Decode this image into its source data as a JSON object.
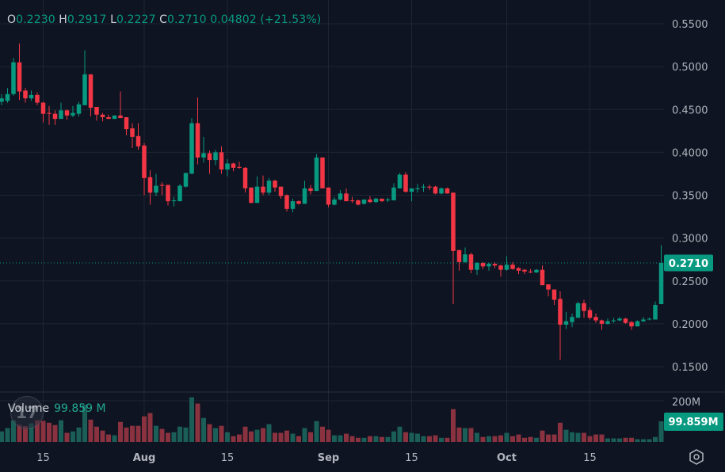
{
  "legend": {
    "open_label": "O",
    "open": "0.2230",
    "high_label": "H",
    "high": "0.2917",
    "low_label": "L",
    "low": "0.2227",
    "close_label": "C",
    "close": "0.2710",
    "change": "0.04802",
    "change_pct": "(+21.53%)"
  },
  "volume_legend": {
    "label": "Volume",
    "value": "99.859 M"
  },
  "last_price_label": "0.2710",
  "last_volume_label": "99.859M",
  "icons": {
    "settings": "settings-hexagon-icon",
    "logo": "tradingview-logo-icon"
  },
  "colors": {
    "background": "#0e1421",
    "up": "#089981",
    "down": "#f23645",
    "volume_up": "#1a5e57",
    "volume_down": "#8a323f",
    "grid": "#1e2533",
    "text": "#b2b5be"
  },
  "chart_data": {
    "type": "candlestick",
    "price_axis": {
      "ticks": [
        "0.5500",
        "0.5000",
        "0.4500",
        "0.4000",
        "0.3500",
        "0.3000",
        "0.2500",
        "0.2000",
        "0.1500"
      ],
      "tick_values": [
        0.55,
        0.5,
        0.45,
        0.4,
        0.35,
        0.3,
        0.25,
        0.2,
        0.15
      ],
      "range": [
        0.138,
        0.55
      ]
    },
    "volume_axis": {
      "ticks": [
        "200M"
      ],
      "tick_values": [
        200
      ],
      "unit": "M"
    },
    "time_axis": {
      "ticks": [
        {
          "label": "15",
          "date": "Jul 15"
        },
        {
          "label": "Aug",
          "date": "Aug 1"
        },
        {
          "label": "15",
          "date": "Aug 15"
        },
        {
          "label": "Sep",
          "date": "Sep 1"
        },
        {
          "label": "15",
          "date": "Sep 15"
        },
        {
          "label": "Oct",
          "date": "Oct 1"
        },
        {
          "label": "15",
          "date": "Oct 15"
        }
      ]
    },
    "last_price": 0.271,
    "last_volume_m": 99.859,
    "grid": true,
    "columns": [
      "date",
      "open",
      "high",
      "low",
      "close",
      "volume_m"
    ],
    "candles": [
      [
        "Jul 8",
        0.459,
        0.468,
        0.455,
        0.463,
        51
      ],
      [
        "Jul 9",
        0.46,
        0.475,
        0.458,
        0.468,
        67
      ],
      [
        "Jul 10",
        0.468,
        0.51,
        0.466,
        0.505,
        105
      ],
      [
        "Jul 11",
        0.505,
        0.527,
        0.461,
        0.471,
        83
      ],
      [
        "Jul 12",
        0.472,
        0.475,
        0.458,
        0.463,
        77
      ],
      [
        "Jul 13",
        0.463,
        0.472,
        0.46,
        0.467,
        90
      ],
      [
        "Jul 14",
        0.467,
        0.47,
        0.455,
        0.458,
        105
      ],
      [
        "Jul 15",
        0.458,
        0.459,
        0.435,
        0.445,
        102
      ],
      [
        "Jul 16",
        0.446,
        0.454,
        0.432,
        0.445,
        93
      ],
      [
        "Jul 17",
        0.445,
        0.449,
        0.432,
        0.439,
        82
      ],
      [
        "Jul 18",
        0.439,
        0.458,
        0.439,
        0.449,
        105
      ],
      [
        "Jul 19",
        0.449,
        0.45,
        0.438,
        0.443,
        44
      ],
      [
        "Jul 20",
        0.443,
        0.454,
        0.441,
        0.446,
        51
      ],
      [
        "Jul 21",
        0.445,
        0.459,
        0.442,
        0.456,
        70
      ],
      [
        "Jul 22",
        0.455,
        0.519,
        0.455,
        0.491,
        180
      ],
      [
        "Jul 23",
        0.491,
        0.491,
        0.442,
        0.452,
        108
      ],
      [
        "Jul 24",
        0.453,
        0.453,
        0.437,
        0.444,
        74
      ],
      [
        "Jul 25",
        0.444,
        0.446,
        0.436,
        0.441,
        55
      ],
      [
        "Jul 26",
        0.441,
        0.444,
        0.439,
        0.439,
        36
      ],
      [
        "Jul 27",
        0.439,
        0.443,
        0.439,
        0.443,
        32
      ],
      [
        "Jul 28",
        0.443,
        0.471,
        0.44,
        0.44,
        97
      ],
      [
        "Jul 29",
        0.441,
        0.441,
        0.42,
        0.427,
        70
      ],
      [
        "Jul 30",
        0.428,
        0.434,
        0.405,
        0.418,
        78
      ],
      [
        "Jul 31",
        0.419,
        0.434,
        0.403,
        0.407,
        78
      ],
      [
        "Aug 1",
        0.408,
        0.411,
        0.35,
        0.37,
        124
      ],
      [
        "Aug 2",
        0.371,
        0.379,
        0.339,
        0.353,
        140
      ],
      [
        "Aug 3",
        0.353,
        0.375,
        0.349,
        0.361,
        78
      ],
      [
        "Aug 4",
        0.362,
        0.365,
        0.35,
        0.361,
        63
      ],
      [
        "Aug 5",
        0.362,
        0.362,
        0.338,
        0.343,
        44
      ],
      [
        "Aug 6",
        0.343,
        0.348,
        0.337,
        0.344,
        47
      ],
      [
        "Aug 7",
        0.343,
        0.363,
        0.343,
        0.361,
        74
      ],
      [
        "Aug 8",
        0.36,
        0.376,
        0.359,
        0.376,
        70
      ],
      [
        "Aug 9",
        0.375,
        0.44,
        0.375,
        0.434,
        216
      ],
      [
        "Aug 10",
        0.434,
        0.464,
        0.386,
        0.394,
        186
      ],
      [
        "Aug 11",
        0.394,
        0.418,
        0.388,
        0.399,
        116
      ],
      [
        "Aug 12",
        0.399,
        0.402,
        0.375,
        0.391,
        86
      ],
      [
        "Aug 13",
        0.391,
        0.403,
        0.385,
        0.4,
        67
      ],
      [
        "Aug 14",
        0.4,
        0.407,
        0.375,
        0.38,
        78
      ],
      [
        "Aug 15",
        0.38,
        0.392,
        0.372,
        0.387,
        47
      ],
      [
        "Aug 16",
        0.387,
        0.388,
        0.378,
        0.382,
        28
      ],
      [
        "Aug 17",
        0.383,
        0.389,
        0.381,
        0.382,
        36
      ],
      [
        "Aug 18",
        0.382,
        0.383,
        0.353,
        0.358,
        74
      ],
      [
        "Aug 19",
        0.359,
        0.359,
        0.341,
        0.341,
        51
      ],
      [
        "Aug 20",
        0.341,
        0.372,
        0.341,
        0.36,
        59
      ],
      [
        "Aug 21",
        0.36,
        0.373,
        0.35,
        0.353,
        67
      ],
      [
        "Aug 22",
        0.353,
        0.37,
        0.35,
        0.367,
        86
      ],
      [
        "Aug 23",
        0.367,
        0.368,
        0.354,
        0.359,
        44
      ],
      [
        "Aug 24",
        0.36,
        0.36,
        0.346,
        0.349,
        44
      ],
      [
        "Aug 25",
        0.35,
        0.351,
        0.331,
        0.334,
        55
      ],
      [
        "Aug 26",
        0.334,
        0.346,
        0.33,
        0.343,
        40
      ],
      [
        "Aug 27",
        0.343,
        0.344,
        0.339,
        0.34,
        28
      ],
      [
        "Aug 28",
        0.34,
        0.367,
        0.34,
        0.358,
        67
      ],
      [
        "Aug 29",
        0.358,
        0.362,
        0.351,
        0.355,
        47
      ],
      [
        "Aug 30",
        0.355,
        0.398,
        0.355,
        0.394,
        101
      ],
      [
        "Aug 31",
        0.394,
        0.394,
        0.358,
        0.358,
        74
      ],
      [
        "Sep 1",
        0.359,
        0.359,
        0.336,
        0.339,
        59
      ],
      [
        "Sep 2",
        0.339,
        0.348,
        0.338,
        0.345,
        32
      ],
      [
        "Sep 3",
        0.345,
        0.356,
        0.344,
        0.352,
        32
      ],
      [
        "Sep 4",
        0.352,
        0.358,
        0.343,
        0.343,
        40
      ],
      [
        "Sep 5",
        0.344,
        0.348,
        0.341,
        0.343,
        28
      ],
      [
        "Sep 6",
        0.344,
        0.345,
        0.338,
        0.339,
        20
      ],
      [
        "Sep 7",
        0.34,
        0.345,
        0.339,
        0.345,
        20
      ],
      [
        "Sep 8",
        0.345,
        0.349,
        0.341,
        0.342,
        28
      ],
      [
        "Sep 9",
        0.342,
        0.347,
        0.341,
        0.346,
        28
      ],
      [
        "Sep 10",
        0.346,
        0.346,
        0.342,
        0.343,
        24
      ],
      [
        "Sep 11",
        0.344,
        0.347,
        0.342,
        0.345,
        24
      ],
      [
        "Sep 12",
        0.344,
        0.364,
        0.344,
        0.359,
        51
      ],
      [
        "Sep 13",
        0.358,
        0.376,
        0.358,
        0.374,
        74
      ],
      [
        "Sep 14",
        0.374,
        0.377,
        0.353,
        0.354,
        47
      ],
      [
        "Sep 15",
        0.354,
        0.358,
        0.343,
        0.358,
        44
      ],
      [
        "Sep 16",
        0.357,
        0.363,
        0.353,
        0.358,
        40
      ],
      [
        "Sep 17",
        0.359,
        0.363,
        0.354,
        0.36,
        28
      ],
      [
        "Sep 18",
        0.36,
        0.362,
        0.356,
        0.359,
        28
      ],
      [
        "Sep 19",
        0.36,
        0.361,
        0.351,
        0.352,
        32
      ],
      [
        "Sep 20",
        0.352,
        0.359,
        0.351,
        0.358,
        20
      ],
      [
        "Sep 21",
        0.358,
        0.359,
        0.352,
        0.352,
        20
      ],
      [
        "Sep 22",
        0.353,
        0.353,
        0.223,
        0.285,
        159
      ],
      [
        "Sep 23",
        0.286,
        0.286,
        0.262,
        0.272,
        70
      ],
      [
        "Sep 24",
        0.272,
        0.289,
        0.271,
        0.281,
        67
      ],
      [
        "Sep 25",
        0.281,
        0.283,
        0.259,
        0.263,
        67
      ],
      [
        "Sep 26",
        0.263,
        0.272,
        0.257,
        0.271,
        44
      ],
      [
        "Sep 27",
        0.271,
        0.272,
        0.264,
        0.267,
        24
      ],
      [
        "Sep 28",
        0.267,
        0.271,
        0.262,
        0.27,
        28
      ],
      [
        "Sep 29",
        0.27,
        0.272,
        0.265,
        0.268,
        28
      ],
      [
        "Sep 30",
        0.268,
        0.269,
        0.255,
        0.263,
        32
      ],
      [
        "Oct 1",
        0.263,
        0.279,
        0.262,
        0.269,
        44
      ],
      [
        "Oct 2",
        0.269,
        0.272,
        0.263,
        0.264,
        28
      ],
      [
        "Oct 3",
        0.265,
        0.266,
        0.258,
        0.262,
        36
      ],
      [
        "Oct 4",
        0.263,
        0.264,
        0.258,
        0.261,
        20
      ],
      [
        "Oct 5",
        0.261,
        0.264,
        0.259,
        0.2605,
        24
      ],
      [
        "Oct 6",
        0.26,
        0.264,
        0.259,
        0.263,
        20
      ],
      [
        "Oct 7",
        0.263,
        0.268,
        0.245,
        0.245,
        55
      ],
      [
        "Oct 8",
        0.246,
        0.246,
        0.232,
        0.24,
        36
      ],
      [
        "Oct 9",
        0.24,
        0.24,
        0.222,
        0.228,
        36
      ],
      [
        "Oct 10",
        0.229,
        0.238,
        0.158,
        0.199,
        93
      ],
      [
        "Oct 11",
        0.199,
        0.214,
        0.194,
        0.203,
        59
      ],
      [
        "Oct 12",
        0.202,
        0.212,
        0.196,
        0.208,
        47
      ],
      [
        "Oct 13",
        0.207,
        0.226,
        0.207,
        0.224,
        44
      ],
      [
        "Oct 14",
        0.224,
        0.228,
        0.207,
        0.215,
        44
      ],
      [
        "Oct 15",
        0.216,
        0.219,
        0.205,
        0.207,
        28
      ],
      [
        "Oct 16",
        0.208,
        0.212,
        0.201,
        0.204,
        36
      ],
      [
        "Oct 17",
        0.204,
        0.205,
        0.193,
        0.2,
        36
      ],
      [
        "Oct 18",
        0.2,
        0.206,
        0.199,
        0.203,
        17
      ],
      [
        "Oct 19",
        0.203,
        0.207,
        0.201,
        0.204,
        17
      ],
      [
        "Oct 20",
        0.204,
        0.208,
        0.203,
        0.206,
        17
      ],
      [
        "Oct 21",
        0.206,
        0.207,
        0.2,
        0.201,
        20
      ],
      [
        "Oct 22",
        0.202,
        0.203,
        0.193,
        0.197,
        20
      ],
      [
        "Oct 23",
        0.197,
        0.204,
        0.197,
        0.203,
        13
      ],
      [
        "Oct 24",
        0.203,
        0.208,
        0.202,
        0.205,
        13
      ],
      [
        "Oct 25",
        0.205,
        0.207,
        0.204,
        0.206,
        13
      ],
      [
        "Oct 26",
        0.205,
        0.226,
        0.205,
        0.222,
        24
      ],
      [
        "Oct 27",
        0.223,
        0.2917,
        0.2227,
        0.271,
        99.859
      ]
    ]
  }
}
